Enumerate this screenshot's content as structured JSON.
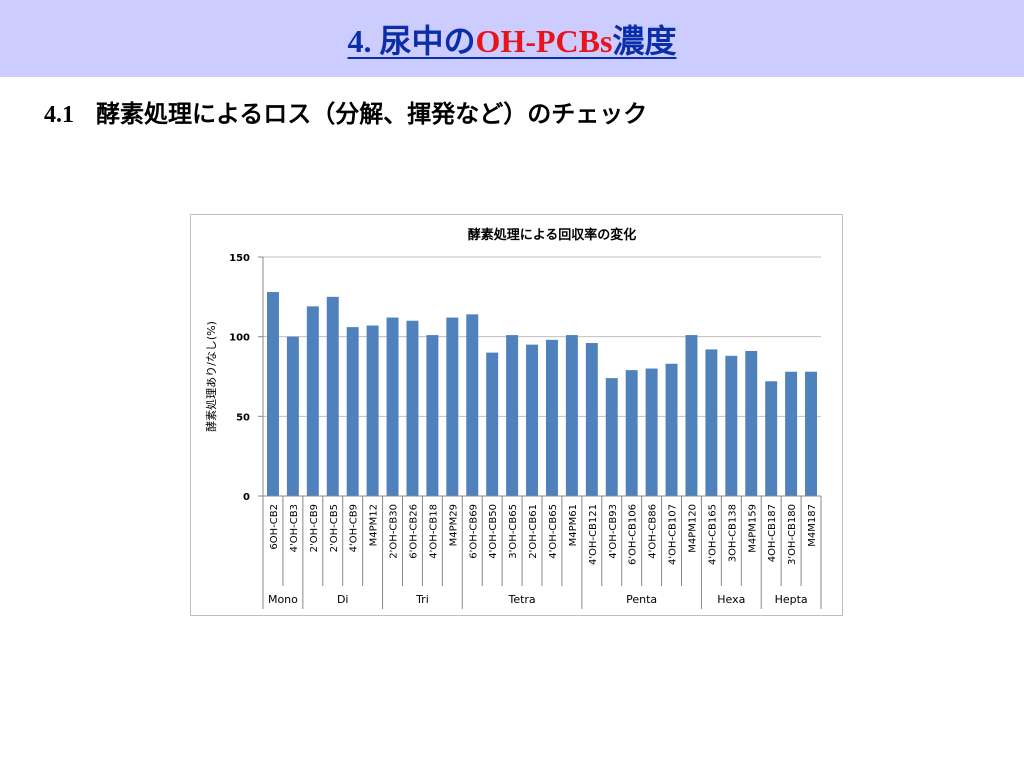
{
  "slide": {
    "title_num": "4.",
    "title_pre": "尿中の",
    "title_accent": "OH-PCBs",
    "title_post": "濃度",
    "accent_color": "#e8141c",
    "title_color": "#0a2ea8",
    "header_bg": "#ccccff"
  },
  "section": {
    "number": "4.1",
    "heading": "酵素処理によるロス（分解、揮発など）のチェック"
  },
  "chart_data": {
    "type": "bar",
    "title": "酵素処理による回収率の変化",
    "ylabel": "酵素処理あり/なし(%)",
    "xlabel": "",
    "ylim": [
      0,
      150
    ],
    "yticks": [
      0,
      50,
      100,
      150
    ],
    "grid": true,
    "bar_color": "#4f81bd",
    "categories": [
      "6OH-CB2",
      "4'OH-CB3",
      "2'OH-CB9",
      "2'OH-CB5",
      "4'OH-CB9",
      "M4PM12",
      "2'OH-CB30",
      "6'OH-CB26",
      "4'OH-CB18",
      "M4PM29",
      "6'OH-CB69",
      "4'OH-CB50",
      "3'OH-CB65",
      "2'OH-CB61",
      "4'OH-CB65",
      "M4PM61",
      "4'OH-CB121",
      "4'OH-CB93",
      "6'OH-CB106",
      "4'OH-CB86",
      "4'OH-CB107",
      "M4PM120",
      "4'OH-CB165",
      "3OH-CB138",
      "M4PM159",
      "4OH-CB187",
      "3'OH-CB180",
      "M4M187"
    ],
    "values": [
      128,
      100,
      119,
      125,
      106,
      107,
      112,
      110,
      101,
      112,
      114,
      90,
      101,
      95,
      98,
      101,
      96,
      74,
      79,
      80,
      83,
      101,
      92,
      88,
      91,
      72,
      78,
      78
    ],
    "groups": [
      {
        "label": "Mono",
        "count": 2
      },
      {
        "label": "Di",
        "count": 4
      },
      {
        "label": "Tri",
        "count": 4
      },
      {
        "label": "Tetra",
        "count": 6
      },
      {
        "label": "Penta",
        "count": 6
      },
      {
        "label": "Hexa",
        "count": 3
      },
      {
        "label": "Hepta",
        "count": 3
      }
    ]
  }
}
